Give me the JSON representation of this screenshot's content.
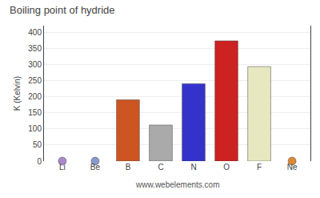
{
  "chart_data": {
    "type": "bar",
    "title": "Boiling point of hydride",
    "ylabel": "K (Kelvin)",
    "categories": [
      "Li",
      "Be",
      "B",
      "C",
      "N",
      "O",
      "F",
      "Ne"
    ],
    "series": [
      {
        "type": "bar",
        "colors": [
          "#cc6633",
          "#cc6633",
          "#cc5522",
          "#aaaaaa",
          "#3333cc",
          "#cc2222",
          "#e8e8c0",
          "#dd8833"
        ],
        "values": [
          null,
          null,
          190,
          112,
          240,
          373,
          293,
          null
        ]
      },
      {
        "type": "scatter",
        "marker": "circle",
        "colors": [
          "#aa88cc",
          "#8899cc",
          "#cc5522",
          "#aaaaaa",
          "#3333cc",
          "#cc2222",
          "#e8e8c0",
          "#dd8833"
        ],
        "values": [
          0,
          0,
          null,
          null,
          null,
          null,
          null,
          0
        ]
      }
    ],
    "ylim": [
      0,
      420
    ],
    "yticks": [
      0,
      50,
      100,
      150,
      200,
      250,
      300,
      350,
      400
    ],
    "grid": true,
    "annotations": [
      {
        "text": "www.webelements.com"
      }
    ]
  }
}
